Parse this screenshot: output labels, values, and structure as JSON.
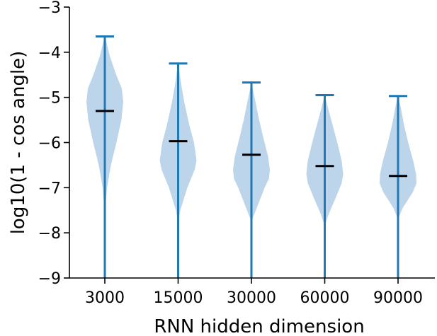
{
  "chart_data": {
    "type": "violin",
    "title": "",
    "xlabel": "RNN hidden dimension",
    "ylabel": "log10(1 - cos angle)",
    "ylim": [
      -9,
      -3
    ],
    "yticks": [
      -9,
      -8,
      -7,
      -6,
      -5,
      -4,
      -3
    ],
    "ytick_labels": [
      "−9",
      "−8",
      "−7",
      "−6",
      "−5",
      "−4",
      "−3"
    ],
    "categories": [
      "3000",
      "15000",
      "30000",
      "60000",
      "90000"
    ],
    "grid": false,
    "colors": {
      "violin_fill": "#a6c7e3",
      "whisker": "#1f77b4",
      "median": "#000000",
      "axis": "#000000"
    },
    "violins": [
      {
        "category": "3000",
        "min": -9.0,
        "max": -3.65,
        "median": -5.3,
        "density": [
          [
            -7.6,
            0
          ],
          [
            -7.0,
            0.12
          ],
          [
            -6.5,
            0.33
          ],
          [
            -6.0,
            0.63
          ],
          [
            -5.5,
            0.9
          ],
          [
            -5.1,
            1.0
          ],
          [
            -4.8,
            0.92
          ],
          [
            -4.5,
            0.62
          ],
          [
            -4.1,
            0.28
          ],
          [
            -3.7,
            0.04
          ],
          [
            -3.65,
            0
          ]
        ]
      },
      {
        "category": "15000",
        "min": -9.0,
        "max": -4.25,
        "median": -5.97,
        "density": [
          [
            -7.8,
            0
          ],
          [
            -7.5,
            0.12
          ],
          [
            -7.0,
            0.5
          ],
          [
            -6.6,
            0.9
          ],
          [
            -6.4,
            1.0
          ],
          [
            -6.0,
            0.86
          ],
          [
            -5.6,
            0.6
          ],
          [
            -5.1,
            0.33
          ],
          [
            -4.7,
            0.16
          ],
          [
            -4.3,
            0.03
          ],
          [
            -4.25,
            0
          ]
        ]
      },
      {
        "category": "30000",
        "min": -9.0,
        "max": -4.67,
        "median": -6.27,
        "density": [
          [
            -7.75,
            0
          ],
          [
            -7.5,
            0.24
          ],
          [
            -7.0,
            0.72
          ],
          [
            -6.8,
            0.95
          ],
          [
            -6.6,
            1.0
          ],
          [
            -6.3,
            0.9
          ],
          [
            -5.9,
            0.65
          ],
          [
            -5.5,
            0.42
          ],
          [
            -5.1,
            0.22
          ],
          [
            -4.75,
            0.04
          ],
          [
            -4.67,
            0
          ]
        ]
      },
      {
        "category": "60000",
        "min": -9.0,
        "max": -4.95,
        "median": -6.52,
        "density": [
          [
            -7.85,
            0
          ],
          [
            -7.6,
            0.2
          ],
          [
            -7.2,
            0.62
          ],
          [
            -6.9,
            0.92
          ],
          [
            -6.7,
            1.0
          ],
          [
            -6.4,
            0.92
          ],
          [
            -6.0,
            0.68
          ],
          [
            -5.6,
            0.42
          ],
          [
            -5.3,
            0.22
          ],
          [
            -5.0,
            0.04
          ],
          [
            -4.95,
            0
          ]
        ]
      },
      {
        "category": "90000",
        "min": -9.0,
        "max": -4.97,
        "median": -6.74,
        "density": [
          [
            -7.7,
            0
          ],
          [
            -7.45,
            0.25
          ],
          [
            -7.1,
            0.8
          ],
          [
            -6.9,
            1.0
          ],
          [
            -6.7,
            0.98
          ],
          [
            -6.4,
            0.82
          ],
          [
            -6.0,
            0.55
          ],
          [
            -5.6,
            0.32
          ],
          [
            -5.25,
            0.16
          ],
          [
            -5.0,
            0.03
          ],
          [
            -4.97,
            0
          ]
        ]
      }
    ]
  }
}
